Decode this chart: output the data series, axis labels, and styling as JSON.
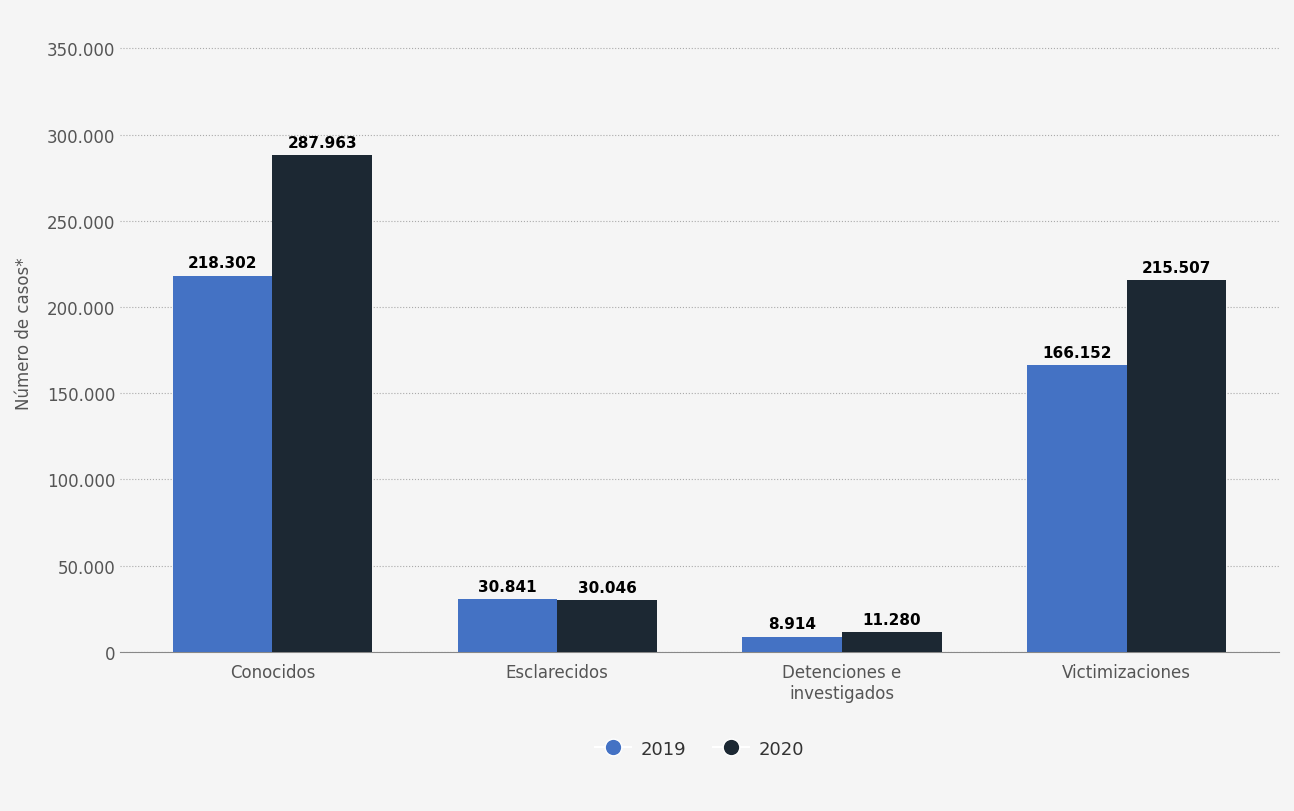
{
  "categories": [
    "Conocidos",
    "Esclarecidos",
    "Detenciones e\ninvestigados",
    "Victimizaciones"
  ],
  "values_2019": [
    218302,
    30841,
    8914,
    166152
  ],
  "values_2020": [
    287963,
    30046,
    11280,
    215507
  ],
  "labels_2019": [
    "218.302",
    "30.841",
    "8.914",
    "166.152"
  ],
  "labels_2020": [
    "287.963",
    "30.046",
    "11.280",
    "215.507"
  ],
  "color_2019": "#4472C4",
  "color_2020": "#1C2833",
  "ylabel": "Número de casos*",
  "yticks": [
    0,
    50000,
    100000,
    150000,
    200000,
    250000,
    300000,
    350000
  ],
  "ytick_labels": [
    "0",
    "50.000",
    "100.000",
    "150.000",
    "200.000",
    "250.000",
    "300.000",
    "350.000"
  ],
  "ylim": [
    0,
    370000
  ],
  "legend_labels": [
    "2019",
    "2020"
  ],
  "background_color": "#f5f5f5",
  "bar_width": 0.35
}
